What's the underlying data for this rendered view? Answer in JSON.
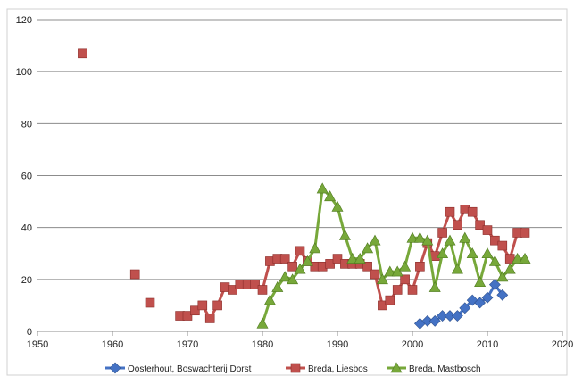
{
  "chart_data": {
    "type": "line",
    "title": "",
    "xlabel": "",
    "ylabel": "",
    "xlim": [
      1950,
      2020
    ],
    "ylim": [
      0,
      120
    ],
    "x_ticks": [
      1950,
      1960,
      1970,
      1980,
      1990,
      2000,
      2010,
      2020
    ],
    "y_ticks": [
      0,
      20,
      40,
      60,
      80,
      100,
      120
    ],
    "grid": "horizontal",
    "legend_position": "bottom",
    "series": [
      {
        "name": "Oosterhout, Boswachterij Dorst",
        "color": "#4472c4",
        "marker": "diamond",
        "points": [
          [
            2001,
            3
          ],
          [
            2002,
            4
          ],
          [
            2003,
            4
          ],
          [
            2004,
            6
          ],
          [
            2005,
            6
          ],
          [
            2006,
            6
          ],
          [
            2007,
            9
          ],
          [
            2008,
            12
          ],
          [
            2009,
            11
          ],
          [
            2010,
            13
          ],
          [
            2011,
            18
          ],
          [
            2012,
            14
          ]
        ]
      },
      {
        "name": "Breda, Liesbos",
        "color": "#c0504d",
        "marker": "square",
        "points": [
          [
            1956,
            107
          ],
          [
            1963,
            22
          ],
          [
            1965,
            11
          ],
          [
            1969,
            6
          ],
          [
            1970,
            6
          ],
          [
            1971,
            8
          ],
          [
            1972,
            10
          ],
          [
            1973,
            5
          ],
          [
            1974,
            10
          ],
          [
            1975,
            17
          ],
          [
            1976,
            16
          ],
          [
            1977,
            18
          ],
          [
            1978,
            18
          ],
          [
            1979,
            18
          ],
          [
            1980,
            16
          ],
          [
            1981,
            27
          ],
          [
            1982,
            28
          ],
          [
            1983,
            28
          ],
          [
            1984,
            25
          ],
          [
            1985,
            31
          ],
          [
            1986,
            27
          ],
          [
            1987,
            25
          ],
          [
            1988,
            25
          ],
          [
            1989,
            26
          ],
          [
            1990,
            28
          ],
          [
            1991,
            26
          ],
          [
            1992,
            26
          ],
          [
            1993,
            26
          ],
          [
            1994,
            25
          ],
          [
            1995,
            22
          ],
          [
            1996,
            10
          ],
          [
            1997,
            12
          ],
          [
            1998,
            16
          ],
          [
            1999,
            20
          ],
          [
            2000,
            16
          ],
          [
            2001,
            25
          ],
          [
            2002,
            34
          ],
          [
            2003,
            29
          ],
          [
            2004,
            38
          ],
          [
            2005,
            46
          ],
          [
            2006,
            41
          ],
          [
            2007,
            47
          ],
          [
            2008,
            46
          ],
          [
            2009,
            41
          ],
          [
            2010,
            39
          ],
          [
            2011,
            35
          ],
          [
            2012,
            33
          ],
          [
            2013,
            28
          ],
          [
            2014,
            38
          ],
          [
            2015,
            38
          ]
        ]
      },
      {
        "name": "Breda, Mastbosch",
        "color": "#77a83a",
        "marker": "triangle",
        "points": [
          [
            1980,
            3
          ],
          [
            1981,
            12
          ],
          [
            1982,
            17
          ],
          [
            1983,
            21
          ],
          [
            1984,
            20
          ],
          [
            1985,
            24
          ],
          [
            1986,
            27
          ],
          [
            1987,
            32
          ],
          [
            1988,
            55
          ],
          [
            1989,
            52
          ],
          [
            1990,
            48
          ],
          [
            1991,
            37
          ],
          [
            1992,
            28
          ],
          [
            1993,
            28
          ],
          [
            1994,
            32
          ],
          [
            1995,
            35
          ],
          [
            1996,
            20
          ],
          [
            1997,
            23
          ],
          [
            1998,
            23
          ],
          [
            1999,
            25
          ],
          [
            2000,
            36
          ],
          [
            2001,
            36
          ],
          [
            2002,
            35
          ],
          [
            2003,
            17
          ],
          [
            2004,
            30
          ],
          [
            2005,
            35
          ],
          [
            2006,
            24
          ],
          [
            2007,
            36
          ],
          [
            2008,
            30
          ],
          [
            2009,
            19
          ],
          [
            2010,
            30
          ],
          [
            2011,
            27
          ],
          [
            2012,
            21
          ],
          [
            2013,
            24
          ],
          [
            2014,
            28
          ],
          [
            2015,
            28
          ]
        ]
      }
    ]
  }
}
